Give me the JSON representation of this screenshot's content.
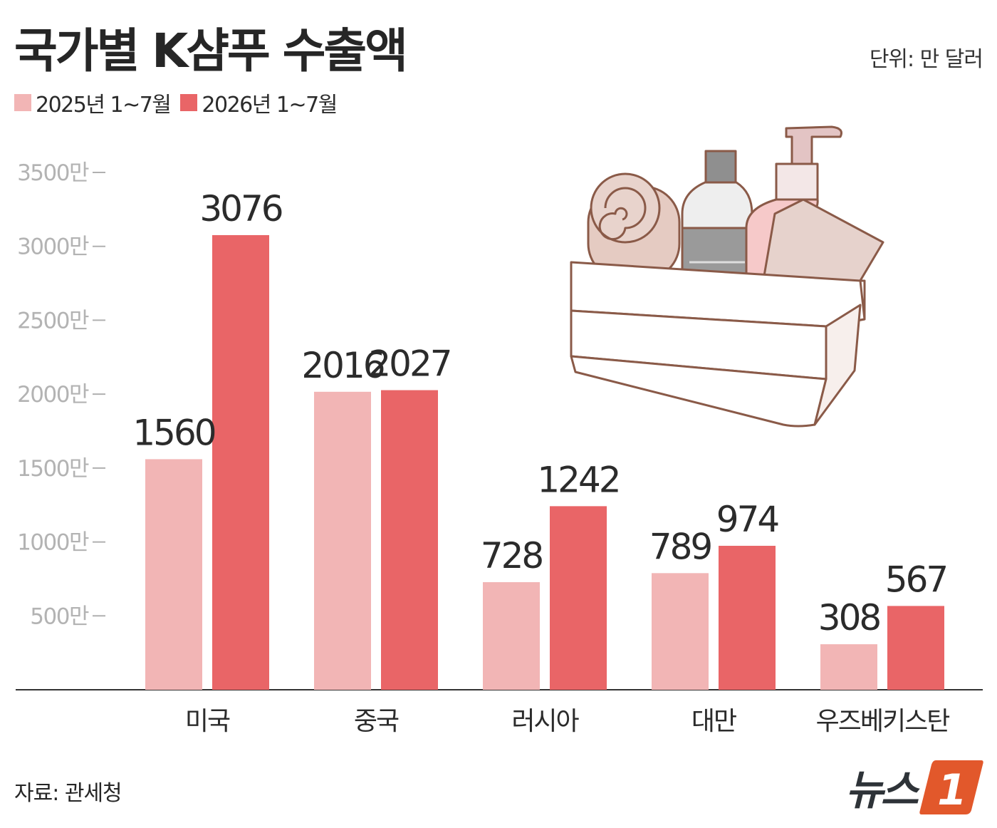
{
  "header": {
    "title": "국가별 K샴푸 수출액",
    "unit": "단위: 만 달러"
  },
  "legend": [
    {
      "label": "2025년 1~7월",
      "color": "#f2b5b5"
    },
    {
      "label": "2026년 1~7월",
      "color": "#e96567"
    }
  ],
  "footer": {
    "source": "자료: 관세청",
    "logo_text": "뉴스",
    "logo_mark": "1"
  },
  "illustration": {
    "icon": "shampoo-basket-icon"
  },
  "chart_data": {
    "type": "bar",
    "categories": [
      "미국",
      "중국",
      "러시아",
      "대만",
      "우즈베키스탄"
    ],
    "series": [
      {
        "name": "2025년 1~7월",
        "values": [
          1560,
          2016,
          728,
          789,
          308
        ],
        "color": "#f2b5b5"
      },
      {
        "name": "2026년 1~7월",
        "values": [
          3076,
          2027,
          1242,
          974,
          567
        ],
        "color": "#e96567"
      }
    ],
    "yticks": [
      500,
      1000,
      1500,
      2000,
      2500,
      3000,
      3500
    ],
    "ytick_labels": [
      "500만",
      "1000만",
      "1500만",
      "2000만",
      "2500만",
      "3000만",
      "3500만"
    ],
    "ylim": [
      0,
      3500
    ],
    "grid": false,
    "legend_position": "top-left"
  }
}
